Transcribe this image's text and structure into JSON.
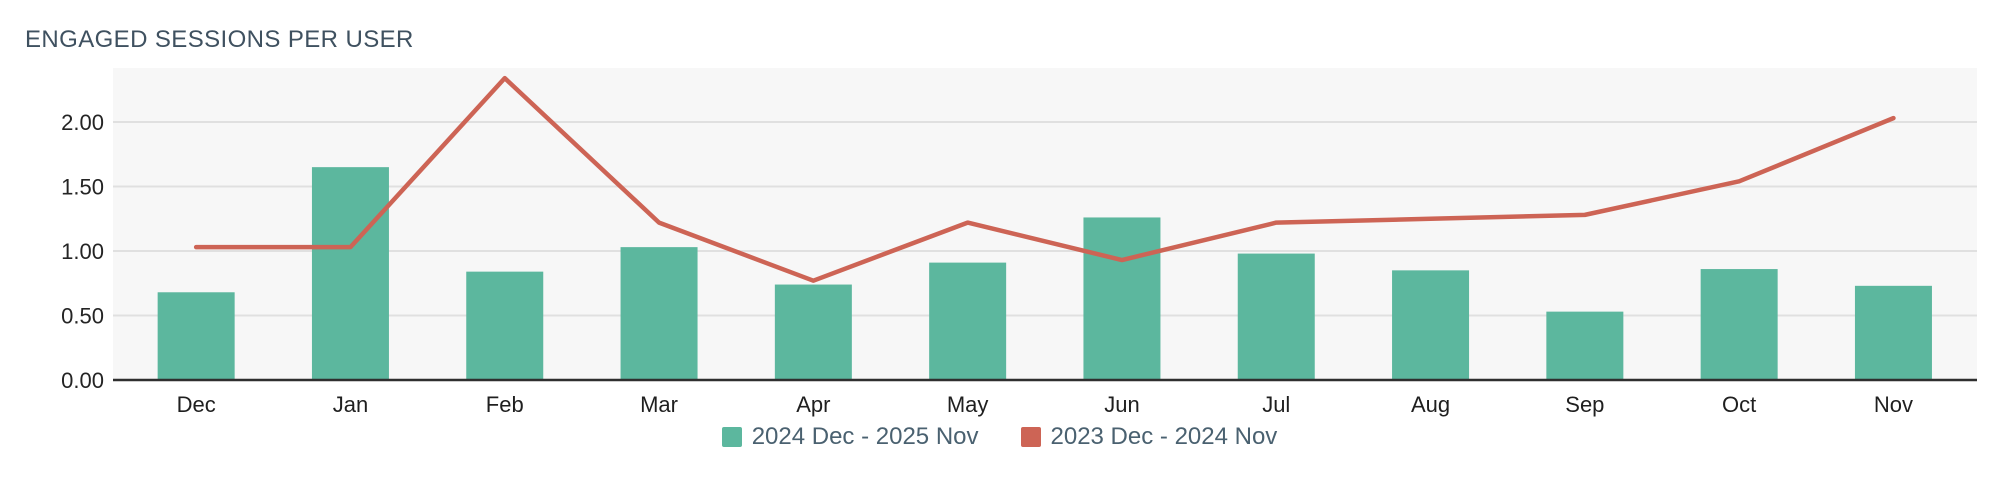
{
  "title": "ENGAGED SESSIONS PER USER",
  "legend": {
    "items": [
      {
        "label": "2024 Dec - 2025 Nov",
        "series": "bars",
        "color": "#5cb79e"
      },
      {
        "label": "2023 Dec - 2024 Nov",
        "series": "line",
        "color": "#cd6455"
      }
    ]
  },
  "colors": {
    "title_text": "#3f5160",
    "legend_text": "#4a6170",
    "axis_text": "#242424",
    "bar": "#5cb79e",
    "line": "#cd6455",
    "plot_background": "#f7f7f7",
    "gridline": "#e0e0e0",
    "axis_line": "#2f2f2f",
    "page_background": "#ffffff"
  },
  "chart_data": {
    "type": "bar",
    "subtype": "combo-bar-line",
    "title": "ENGAGED SESSIONS PER USER",
    "categories": [
      "Dec",
      "Jan",
      "Feb",
      "Mar",
      "Apr",
      "May",
      "Jun",
      "Jul",
      "Aug",
      "Sep",
      "Oct",
      "Nov"
    ],
    "series": [
      {
        "name": "2024 Dec - 2025 Nov",
        "type": "bar",
        "color": "#5cb79e",
        "values": [
          0.68,
          1.65,
          0.84,
          1.03,
          0.74,
          0.91,
          1.26,
          0.98,
          0.85,
          0.53,
          0.86,
          0.73
        ]
      },
      {
        "name": "2023 Dec - 2024 Nov",
        "type": "line",
        "color": "#cd6455",
        "values": [
          1.03,
          1.03,
          2.34,
          1.22,
          0.77,
          1.22,
          0.93,
          1.22,
          1.25,
          1.28,
          1.54,
          2.03
        ]
      }
    ],
    "xlabel": "",
    "ylabel": "",
    "y_ticks": [
      {
        "value": 0.0,
        "label": "0.00"
      },
      {
        "value": 0.5,
        "label": "0.50"
      },
      {
        "value": 1.0,
        "label": "1.00"
      },
      {
        "value": 1.5,
        "label": "1.50"
      },
      {
        "value": 2.0,
        "label": "2.00"
      }
    ],
    "ylim": [
      0,
      2.42
    ],
    "grid": "horizontal",
    "legend_position": "bottom-center"
  }
}
